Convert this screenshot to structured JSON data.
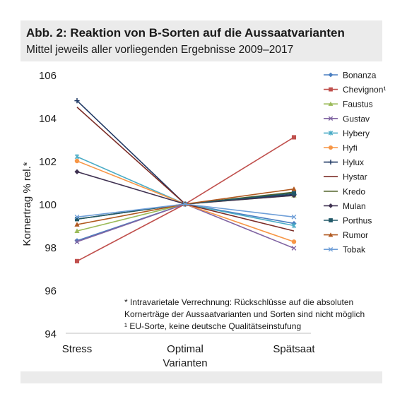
{
  "title": "Abb. 2: Reaktion von B-Sorten auf die Aussaatvarianten",
  "subtitle": "Mittel jeweils aller vorliegenden Ergebnisse 2009–2017",
  "footnotes": [
    "* Intravarietale Verrechnung: Rückschlüsse auf die absoluten",
    "Kornerträge der Aussaatvarianten und Sorten sind nicht möglich",
    "¹ EU-Sorte, keine deutsche Qualitätseinstufung"
  ],
  "chart_data": {
    "type": "line",
    "title": "Abb. 2: Reaktion von B-Sorten auf die Aussaatvarianten",
    "subtitle": "Mittel jeweils aller vorliegenden Ergebnisse 2009–2017",
    "categories": [
      "Stress",
      "Optimal",
      "Spätsaat"
    ],
    "xlabel": "Varianten",
    "ylabel": "Kornertrag % rel.*",
    "ylim": [
      94,
      106
    ],
    "yticks": [
      94,
      96,
      98,
      100,
      102,
      104,
      106
    ],
    "grid": false,
    "legend_position": "right",
    "series": [
      {
        "name": "Bonanza",
        "color": "#4a7fc1",
        "marker": "diamond",
        "values": [
          98.3,
          100,
          99.1
        ]
      },
      {
        "name": "Chevignon¹",
        "color": "#c0504d",
        "marker": "square",
        "values": [
          97.35,
          100,
          103.1
        ]
      },
      {
        "name": "Faustus",
        "color": "#9bbb59",
        "marker": "triangle",
        "values": [
          98.75,
          100,
          100.4
        ]
      },
      {
        "name": "Gustav",
        "color": "#8064a2",
        "marker": "x",
        "values": [
          98.25,
          100,
          97.95
        ]
      },
      {
        "name": "Hybery",
        "color": "#4bacc6",
        "marker": "star",
        "values": [
          102.2,
          100,
          99.0
        ]
      },
      {
        "name": "Hyfi",
        "color": "#f79646",
        "marker": "circle",
        "values": [
          102.0,
          100,
          98.25
        ]
      },
      {
        "name": "Hylux",
        "color": "#1f3864",
        "marker": "plus",
        "values": [
          104.8,
          100,
          100.45
        ]
      },
      {
        "name": "Hystar",
        "color": "#7b2c26",
        "marker": "none",
        "values": [
          104.5,
          100,
          98.75
        ]
      },
      {
        "name": "Kredo",
        "color": "#4f6228",
        "marker": "none",
        "values": [
          99.3,
          100,
          100.55
        ]
      },
      {
        "name": "Mulan",
        "color": "#3f3151",
        "marker": "diamond",
        "values": [
          101.5,
          100,
          100.4
        ]
      },
      {
        "name": "Porthus",
        "color": "#215868",
        "marker": "square",
        "values": [
          99.3,
          100,
          100.5
        ]
      },
      {
        "name": "Rumor",
        "color": "#b0581f",
        "marker": "triangle",
        "values": [
          99.05,
          100,
          100.7
        ]
      },
      {
        "name": "Tobak",
        "color": "#6f9fd8",
        "marker": "x",
        "values": [
          99.4,
          100,
          99.4
        ]
      }
    ]
  }
}
